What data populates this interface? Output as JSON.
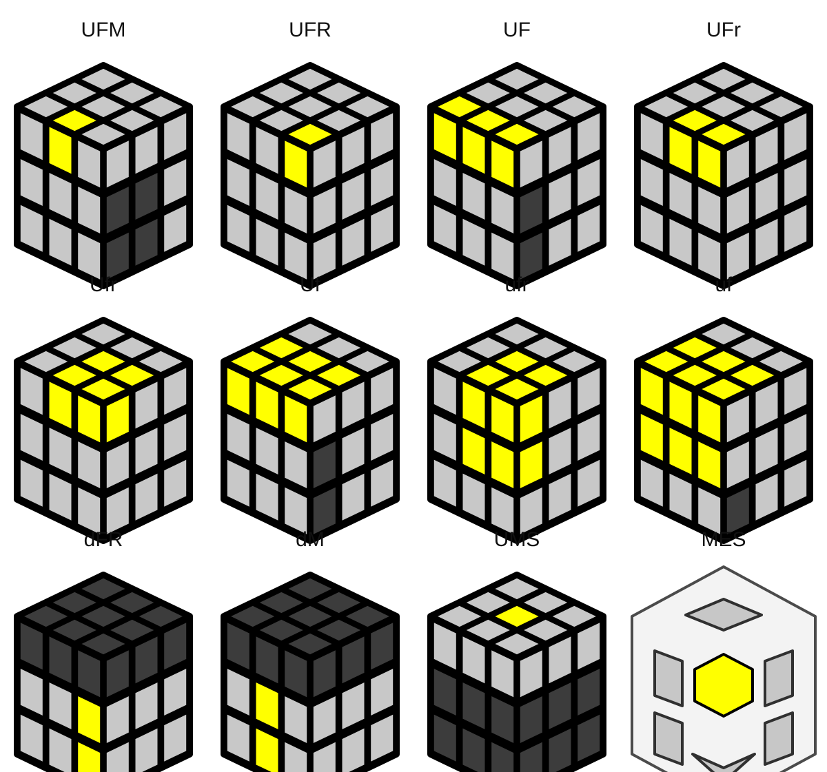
{
  "colors": {
    "gray": "#c8c8c8",
    "yellow": "#ffff00",
    "dark": "#3c3c3c",
    "outline": "#000000",
    "ghost": "#dcdcdc"
  },
  "cubes": [
    {
      "label": "UFM",
      "icon": "rubiks-cube-icon",
      "highlight": {
        "top": [
          [
            0,
            1,
            "yellow"
          ]
        ],
        "front": [
          [
            0,
            1,
            "yellow"
          ]
        ],
        "right": [
          [
            1,
            0,
            "dark"
          ],
          [
            1,
            1,
            "dark"
          ],
          [
            2,
            0,
            "dark"
          ],
          [
            2,
            1,
            "dark"
          ]
        ]
      }
    },
    {
      "label": "UFR",
      "icon": "rubiks-cube-icon",
      "highlight": {
        "top": [
          [
            0,
            2,
            "yellow"
          ]
        ],
        "front": [
          [
            0,
            2,
            "yellow"
          ]
        ],
        "right": []
      }
    },
    {
      "label": "UF",
      "icon": "rubiks-cube-icon",
      "highlight": {
        "top": [
          [
            0,
            0,
            "yellow"
          ],
          [
            0,
            1,
            "yellow"
          ],
          [
            0,
            2,
            "yellow"
          ]
        ],
        "front": [
          [
            0,
            0,
            "yellow"
          ],
          [
            0,
            1,
            "yellow"
          ],
          [
            0,
            2,
            "yellow"
          ]
        ],
        "right": [
          [
            1,
            0,
            "dark"
          ],
          [
            2,
            0,
            "dark"
          ]
        ]
      }
    },
    {
      "label": "UFr",
      "icon": "rubiks-cube-icon",
      "highlight": {
        "top": [
          [
            0,
            1,
            "yellow"
          ],
          [
            0,
            2,
            "yellow"
          ]
        ],
        "front": [
          [
            0,
            1,
            "yellow"
          ],
          [
            0,
            2,
            "yellow"
          ]
        ],
        "right": []
      }
    },
    {
      "label": "Ufr",
      "icon": "rubiks-cube-icon",
      "highlight": {
        "top": [
          [
            0,
            1,
            "yellow"
          ],
          [
            0,
            2,
            "yellow"
          ],
          [
            1,
            1,
            "yellow"
          ],
          [
            1,
            2,
            "yellow"
          ]
        ],
        "front": [
          [
            0,
            1,
            "yellow"
          ],
          [
            0,
            2,
            "yellow"
          ]
        ],
        "right": [
          [
            0,
            0,
            "yellow"
          ]
        ]
      }
    },
    {
      "label": "Uf",
      "icon": "rubiks-cube-icon",
      "highlight": {
        "top": [
          [
            0,
            0,
            "yellow"
          ],
          [
            0,
            1,
            "yellow"
          ],
          [
            0,
            2,
            "yellow"
          ],
          [
            1,
            0,
            "yellow"
          ],
          [
            1,
            1,
            "yellow"
          ],
          [
            1,
            2,
            "yellow"
          ]
        ],
        "front": [
          [
            0,
            0,
            "yellow"
          ],
          [
            0,
            1,
            "yellow"
          ],
          [
            0,
            2,
            "yellow"
          ]
        ],
        "right": [
          [
            1,
            0,
            "dark"
          ],
          [
            2,
            0,
            "dark"
          ]
        ]
      }
    },
    {
      "label": "ufr",
      "icon": "rubiks-cube-icon",
      "highlight": {
        "top": [
          [
            0,
            1,
            "yellow"
          ],
          [
            0,
            2,
            "yellow"
          ],
          [
            1,
            1,
            "yellow"
          ],
          [
            1,
            2,
            "yellow"
          ]
        ],
        "front": [
          [
            0,
            1,
            "yellow"
          ],
          [
            0,
            2,
            "yellow"
          ],
          [
            1,
            1,
            "yellow"
          ],
          [
            1,
            2,
            "yellow"
          ]
        ],
        "right": [
          [
            0,
            0,
            "yellow"
          ],
          [
            1,
            0,
            "yellow"
          ]
        ]
      }
    },
    {
      "label": "uf",
      "icon": "rubiks-cube-icon",
      "highlight": {
        "top": [
          [
            0,
            0,
            "yellow"
          ],
          [
            0,
            1,
            "yellow"
          ],
          [
            0,
            2,
            "yellow"
          ],
          [
            1,
            0,
            "yellow"
          ],
          [
            1,
            1,
            "yellow"
          ],
          [
            1,
            2,
            "yellow"
          ]
        ],
        "front": [
          [
            0,
            0,
            "yellow"
          ],
          [
            0,
            1,
            "yellow"
          ],
          [
            0,
            2,
            "yellow"
          ],
          [
            1,
            0,
            "yellow"
          ],
          [
            1,
            1,
            "yellow"
          ],
          [
            1,
            2,
            "yellow"
          ]
        ],
        "right": [
          [
            2,
            0,
            "dark"
          ]
        ]
      }
    },
    {
      "label": "dFR",
      "icon": "rubiks-cube-icon",
      "highlight": {
        "topAll": "dark",
        "front": [
          [
            0,
            0,
            "dark"
          ],
          [
            0,
            1,
            "dark"
          ],
          [
            0,
            2,
            "dark"
          ],
          [
            1,
            2,
            "yellow"
          ],
          [
            2,
            2,
            "yellow"
          ]
        ],
        "right": [
          [
            0,
            0,
            "dark"
          ],
          [
            0,
            1,
            "dark"
          ],
          [
            0,
            2,
            "dark"
          ]
        ]
      }
    },
    {
      "label": "dM",
      "icon": "rubiks-cube-icon",
      "highlight": {
        "topAll": "dark",
        "front": [
          [
            0,
            0,
            "dark"
          ],
          [
            0,
            1,
            "dark"
          ],
          [
            0,
            2,
            "dark"
          ],
          [
            1,
            1,
            "yellow"
          ],
          [
            2,
            1,
            "yellow"
          ]
        ],
        "right": [
          [
            0,
            0,
            "dark"
          ],
          [
            0,
            1,
            "dark"
          ],
          [
            0,
            2,
            "dark"
          ]
        ]
      }
    },
    {
      "label": "UMS",
      "icon": "rubiks-cube-icon",
      "highlight": {
        "top": [
          [
            1,
            1,
            "yellow"
          ]
        ],
        "front": [
          [
            1,
            0,
            "dark"
          ],
          [
            1,
            1,
            "dark"
          ],
          [
            1,
            2,
            "dark"
          ],
          [
            2,
            0,
            "dark"
          ],
          [
            2,
            1,
            "dark"
          ],
          [
            2,
            2,
            "dark"
          ]
        ],
        "right": [
          [
            1,
            0,
            "dark"
          ],
          [
            1,
            1,
            "dark"
          ],
          [
            1,
            2,
            "dark"
          ],
          [
            2,
            0,
            "dark"
          ],
          [
            2,
            1,
            "dark"
          ],
          [
            2,
            2,
            "dark"
          ]
        ]
      }
    },
    {
      "label": "MES",
      "icon": "ghost-cube-center-icon",
      "ghost": true,
      "highlight": {}
    }
  ]
}
